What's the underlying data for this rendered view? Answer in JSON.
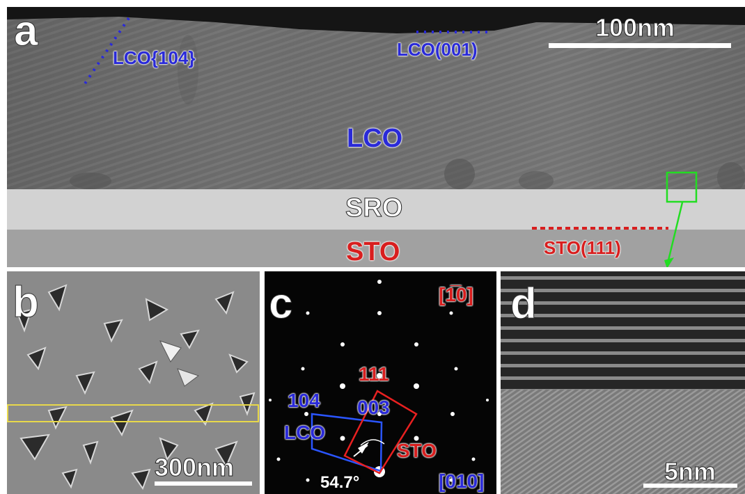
{
  "panel_a": {
    "letter": "a",
    "scalebar": "100nm",
    "labels": {
      "lco104": "LCO{104}",
      "lco001": "LCO(001)",
      "lco": "LCO",
      "sro": "SRO",
      "sto": "STO",
      "sto111": "STO(111)"
    },
    "colors": {
      "blue": "#2a2ad8",
      "red": "#d81e1e",
      "green": "#22dd22"
    }
  },
  "panel_b": {
    "letter": "b",
    "scalebar": "300nm",
    "colors": {
      "highlight": "#e8d84a"
    }
  },
  "panel_c": {
    "letter": "c",
    "zone_sto": "[1̅0]",
    "zone_sto_text": "[110]",
    "zone_lco": "[010]",
    "spot_111": "111",
    "spot_104": "104",
    "spot_003": "003",
    "lco": "LCO",
    "sto": "STO",
    "angle": "54.7°"
  },
  "panel_d": {
    "letter": "d",
    "scalebar": "5nm"
  }
}
